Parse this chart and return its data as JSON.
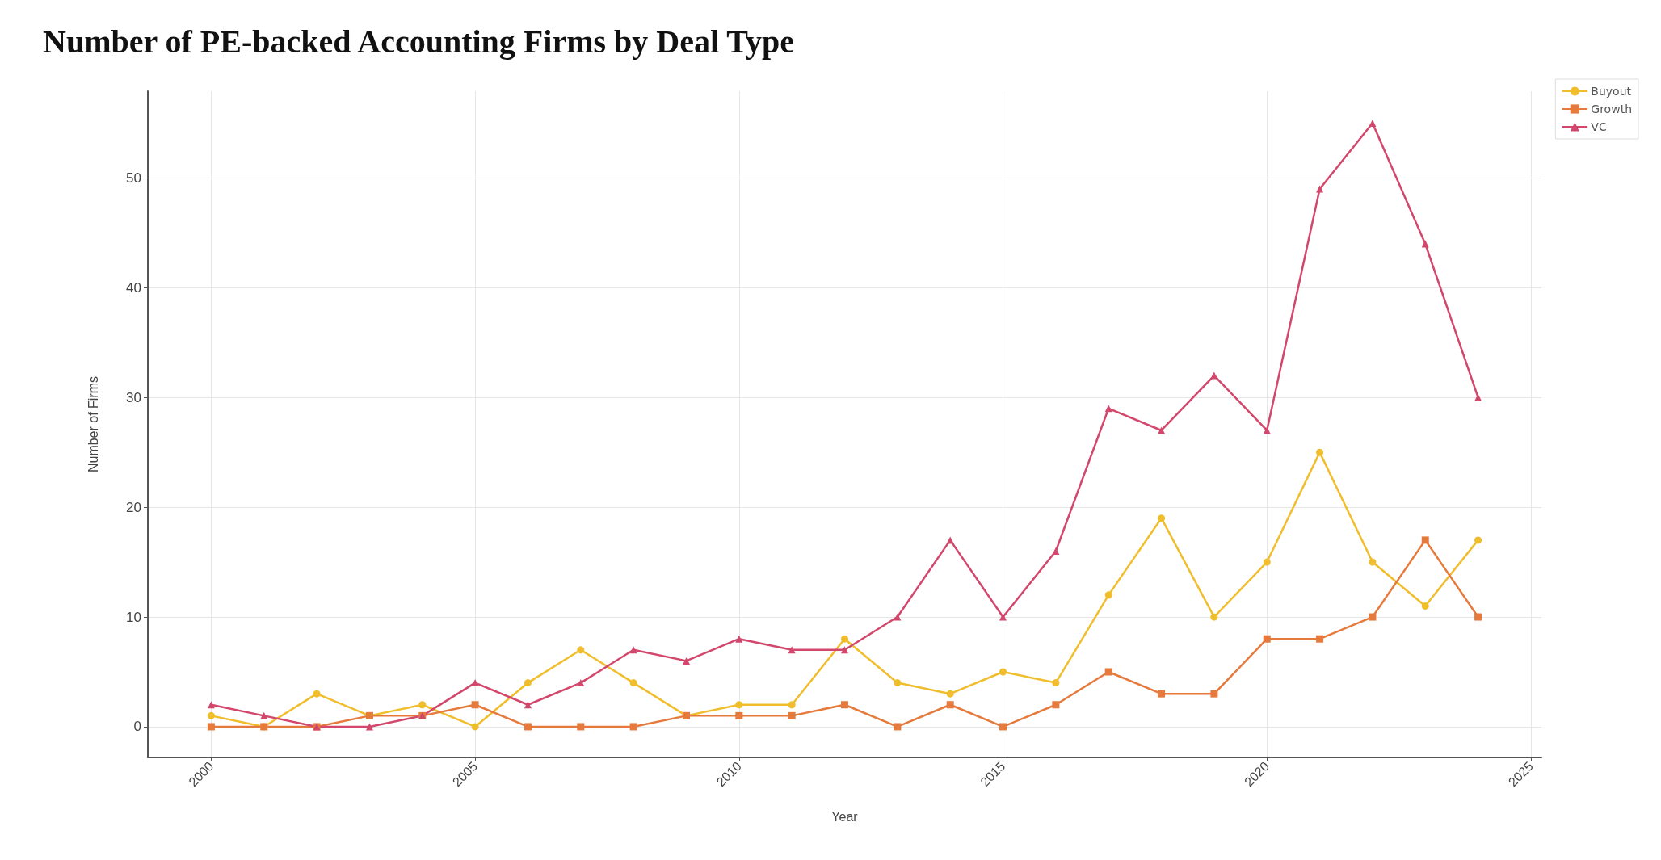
{
  "chart_data": {
    "type": "line",
    "title": "Number of PE-backed Accounting Firms by Deal Type",
    "xlabel": "Year",
    "ylabel": "Number of Firms",
    "x": [
      2000,
      2001,
      2002,
      2003,
      2004,
      2005,
      2006,
      2007,
      2008,
      2009,
      2010,
      2011,
      2012,
      2013,
      2014,
      2015,
      2016,
      2017,
      2018,
      2019,
      2020,
      2021,
      2022,
      2023,
      2024
    ],
    "series": [
      {
        "name": "Buyout",
        "color": "#f0bd2c",
        "marker": "circle",
        "values": [
          1,
          0,
          3,
          1,
          2,
          0,
          4,
          7,
          4,
          1,
          2,
          2,
          8,
          4,
          3,
          5,
          4,
          12,
          19,
          10,
          15,
          25,
          15,
          11,
          17
        ]
      },
      {
        "name": "Growth",
        "color": "#e57a3c",
        "marker": "square",
        "values": [
          0,
          0,
          0,
          1,
          1,
          2,
          0,
          0,
          0,
          1,
          1,
          1,
          2,
          0,
          2,
          0,
          2,
          5,
          3,
          3,
          8,
          8,
          10,
          17,
          10
        ]
      },
      {
        "name": "VC",
        "color": "#d2476b",
        "marker": "triangle",
        "values": [
          2,
          1,
          0,
          0,
          1,
          4,
          2,
          4,
          7,
          6,
          8,
          7,
          7,
          10,
          17,
          10,
          16,
          29,
          27,
          32,
          27,
          49,
          55,
          44,
          30
        ]
      }
    ],
    "xlim": [
      1998.8,
      2025.2
    ],
    "xticks": [
      2000,
      2005,
      2010,
      2015,
      2020,
      2025
    ],
    "ylim": [
      -2.8,
      57.9
    ],
    "yticks": [
      0,
      10,
      20,
      30,
      40,
      50
    ],
    "grid": true,
    "legend": "top right",
    "line_style": "solid"
  }
}
